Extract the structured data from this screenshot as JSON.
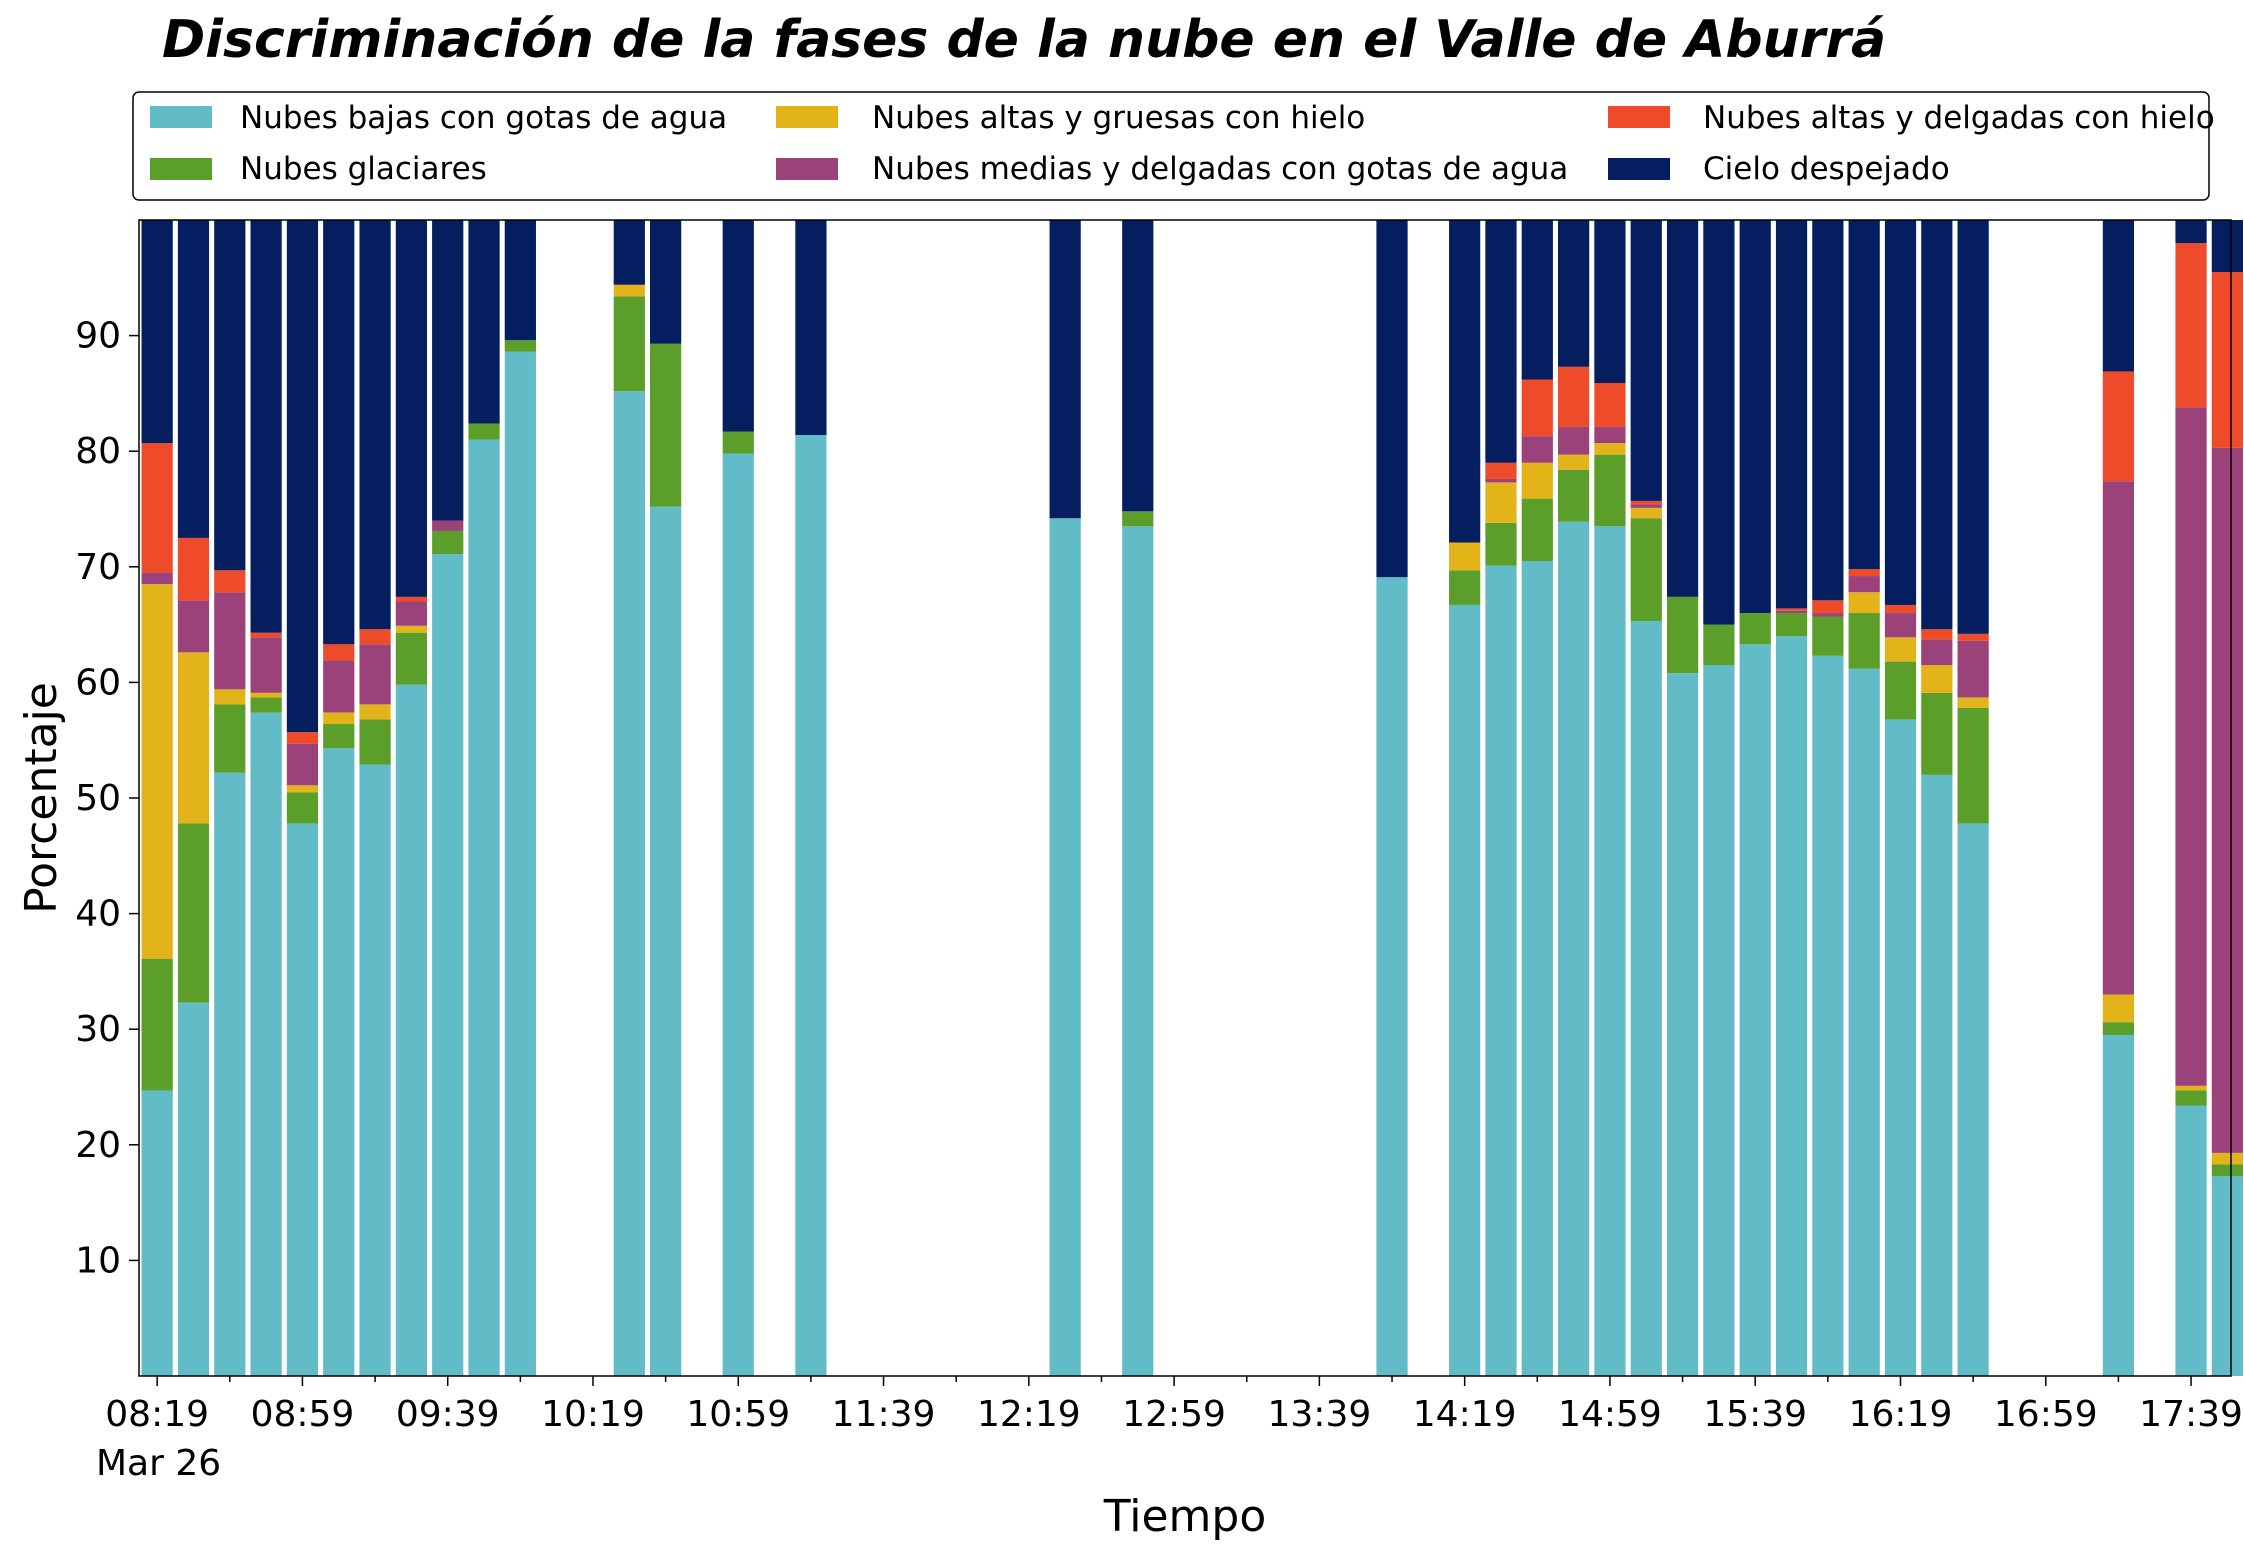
{
  "chart_data": {
    "type": "bar",
    "stacked": true,
    "title": "Discriminación de la fases de la nube en el Valle de Aburrá",
    "xlabel": "Tiempo",
    "ylabel": "Porcentaje",
    "ylim": [
      0,
      100
    ],
    "yticks": [
      10,
      20,
      30,
      40,
      50,
      60,
      70,
      80,
      90
    ],
    "xlim": [
      "08:14",
      "17:50"
    ],
    "xtick_labels": [
      "08:19",
      "08:59",
      "09:39",
      "10:19",
      "10:59",
      "11:39",
      "12:19",
      "12:59",
      "13:39",
      "14:19",
      "14:59",
      "15:39",
      "16:19",
      "16:59",
      "17:39"
    ],
    "xtick_sublabel": "Mar 26",
    "bar_interval_minutes": 10,
    "legend_position": "top, 3 columns",
    "series": [
      {
        "name": "Nubes bajas con gotas de agua",
        "color": "#62bcc8"
      },
      {
        "name": "Nubes altas y gruesas con hielo",
        "color": "#e3b419"
      },
      {
        "name": "Nubes altas y delgadas con hielo",
        "color": "#ee4b2b"
      },
      {
        "name": "Nubes glaciares",
        "color": "#5b9e2a"
      },
      {
        "name": "Nubes medias y delgadas con gotas de agua",
        "color": "#9c427a"
      },
      {
        "name": "Cielo despejado",
        "color": "#041e5f"
      }
    ],
    "stack_order": [
      "Nubes bajas con gotas de agua",
      "Nubes glaciares",
      "Nubes altas y gruesas con hielo",
      "Nubes medias y delgadas con gotas de agua",
      "Nubes altas y delgadas con hielo",
      "Cielo despejado"
    ],
    "bars": [
      {
        "time": "08:19",
        "bajas": 24.7,
        "glaciares": 11.4,
        "gruesas_hielo": 32.4,
        "medias": 1.0,
        "delgadas_hielo": 11.2,
        "despejado": 19.3
      },
      {
        "time": "08:29",
        "bajas": 32.3,
        "glaciares": 15.5,
        "gruesas_hielo": 14.8,
        "medias": 4.5,
        "delgadas_hielo": 5.4,
        "despejado": 27.5
      },
      {
        "time": "08:39",
        "bajas": 52.2,
        "glaciares": 5.9,
        "gruesas_hielo": 1.3,
        "medias": 8.4,
        "delgadas_hielo": 1.9,
        "despejado": 30.3
      },
      {
        "time": "08:49",
        "bajas": 57.4,
        "glaciares": 1.3,
        "gruesas_hielo": 0.4,
        "medias": 4.8,
        "delgadas_hielo": 0.4,
        "despejado": 35.7
      },
      {
        "time": "08:59",
        "bajas": 47.8,
        "glaciares": 2.7,
        "gruesas_hielo": 0.6,
        "medias": 3.6,
        "delgadas_hielo": 1.0,
        "despejado": 44.3
      },
      {
        "time": "09:09",
        "bajas": 54.3,
        "glaciares": 2.1,
        "gruesas_hielo": 1.0,
        "medias": 4.5,
        "delgadas_hielo": 1.4,
        "despejado": 36.7
      },
      {
        "time": "09:19",
        "bajas": 52.9,
        "glaciares": 3.9,
        "gruesas_hielo": 1.3,
        "medias": 5.2,
        "delgadas_hielo": 1.3,
        "despejado": 35.4
      },
      {
        "time": "09:29",
        "bajas": 59.8,
        "glaciares": 4.5,
        "gruesas_hielo": 0.6,
        "medias": 2.1,
        "delgadas_hielo": 0.4,
        "despejado": 32.6
      },
      {
        "time": "09:39",
        "bajas": 71.1,
        "glaciares": 2.0,
        "gruesas_hielo": 0.0,
        "medias": 0.9,
        "delgadas_hielo": 0.0,
        "despejado": 26.0
      },
      {
        "time": "09:49",
        "bajas": 81.0,
        "glaciares": 1.4,
        "gruesas_hielo": 0.0,
        "medias": 0.0,
        "delgadas_hielo": 0.0,
        "despejado": 17.6
      },
      {
        "time": "09:59",
        "bajas": 88.6,
        "glaciares": 1.0,
        "gruesas_hielo": 0.0,
        "medias": 0.0,
        "delgadas_hielo": 0.0,
        "despejado": 10.4
      },
      {
        "time": "10:29",
        "bajas": 85.2,
        "glaciares": 8.2,
        "gruesas_hielo": 1.0,
        "medias": 0.0,
        "delgadas_hielo": 0.0,
        "despejado": 5.6
      },
      {
        "time": "10:39",
        "bajas": 75.2,
        "glaciares": 14.1,
        "gruesas_hielo": 0.0,
        "medias": 0.0,
        "delgadas_hielo": 0.0,
        "despejado": 10.7
      },
      {
        "time": "10:59",
        "bajas": 79.8,
        "glaciares": 1.9,
        "gruesas_hielo": 0.0,
        "medias": 0.0,
        "delgadas_hielo": 0.0,
        "despejado": 18.3
      },
      {
        "time": "11:19",
        "bajas": 81.4,
        "glaciares": 0.0,
        "gruesas_hielo": 0.0,
        "medias": 0.0,
        "delgadas_hielo": 0.0,
        "despejado": 18.6
      },
      {
        "time": "12:29",
        "bajas": 74.2,
        "glaciares": 0.0,
        "gruesas_hielo": 0.0,
        "medias": 0.0,
        "delgadas_hielo": 0.0,
        "despejado": 25.8
      },
      {
        "time": "12:49",
        "bajas": 73.5,
        "glaciares": 1.3,
        "gruesas_hielo": 0.0,
        "medias": 0.0,
        "delgadas_hielo": 0.0,
        "despejado": 25.2
      },
      {
        "time": "13:59",
        "bajas": 69.1,
        "glaciares": 0.0,
        "gruesas_hielo": 0.0,
        "medias": 0.0,
        "delgadas_hielo": 0.0,
        "despejado": 30.9
      },
      {
        "time": "14:19",
        "bajas": 66.7,
        "glaciares": 3.0,
        "gruesas_hielo": 2.4,
        "medias": 0.0,
        "delgadas_hielo": 0.0,
        "despejado": 27.9
      },
      {
        "time": "14:29",
        "bajas": 70.1,
        "glaciares": 3.7,
        "gruesas_hielo": 3.5,
        "medias": 0.3,
        "delgadas_hielo": 1.4,
        "despejado": 21.0
      },
      {
        "time": "14:39",
        "bajas": 70.5,
        "glaciares": 5.4,
        "gruesas_hielo": 3.1,
        "medias": 2.3,
        "delgadas_hielo": 4.9,
        "despejado": 13.8
      },
      {
        "time": "14:49",
        "bajas": 73.9,
        "glaciares": 4.5,
        "gruesas_hielo": 1.3,
        "medias": 2.4,
        "delgadas_hielo": 5.2,
        "despejado": 12.7
      },
      {
        "time": "14:59",
        "bajas": 73.5,
        "glaciares": 6.2,
        "gruesas_hielo": 1.0,
        "medias": 1.4,
        "delgadas_hielo": 3.8,
        "despejado": 14.1
      },
      {
        "time": "15:09",
        "bajas": 65.3,
        "glaciares": 8.9,
        "gruesas_hielo": 0.9,
        "medias": 0.3,
        "delgadas_hielo": 0.3,
        "despejado": 24.3
      },
      {
        "time": "15:19",
        "bajas": 60.8,
        "glaciares": 6.6,
        "gruesas_hielo": 0.0,
        "medias": 0.0,
        "delgadas_hielo": 0.0,
        "despejado": 32.6
      },
      {
        "time": "15:29",
        "bajas": 61.5,
        "glaciares": 3.5,
        "gruesas_hielo": 0.0,
        "medias": 0.0,
        "delgadas_hielo": 0.0,
        "despejado": 35.0
      },
      {
        "time": "15:39",
        "bajas": 63.3,
        "glaciares": 2.7,
        "gruesas_hielo": 0.0,
        "medias": 0.0,
        "delgadas_hielo": 0.0,
        "despejado": 34.0
      },
      {
        "time": "15:49",
        "bajas": 64.0,
        "glaciares": 2.0,
        "gruesas_hielo": 0.0,
        "medias": 0.2,
        "delgadas_hielo": 0.2,
        "despejado": 33.6
      },
      {
        "time": "15:59",
        "bajas": 62.3,
        "glaciares": 3.4,
        "gruesas_hielo": 0.0,
        "medias": 0.3,
        "delgadas_hielo": 1.1,
        "despejado": 32.9
      },
      {
        "time": "16:09",
        "bajas": 61.2,
        "glaciares": 4.8,
        "gruesas_hielo": 1.8,
        "medias": 1.4,
        "delgadas_hielo": 0.6,
        "despejado": 30.2
      },
      {
        "time": "16:19",
        "bajas": 56.8,
        "glaciares": 5.0,
        "gruesas_hielo": 2.1,
        "medias": 2.1,
        "delgadas_hielo": 0.7,
        "despejado": 33.3
      },
      {
        "time": "16:29",
        "bajas": 52.0,
        "glaciares": 7.1,
        "gruesas_hielo": 2.4,
        "medias": 2.2,
        "delgadas_hielo": 0.9,
        "despejado": 35.4
      },
      {
        "time": "16:39",
        "bajas": 47.8,
        "glaciares": 10.0,
        "gruesas_hielo": 0.9,
        "medias": 4.9,
        "delgadas_hielo": 0.6,
        "despejado": 35.8
      },
      {
        "time": "17:19",
        "bajas": 29.5,
        "glaciares": 1.1,
        "gruesas_hielo": 2.4,
        "medias": 44.4,
        "delgadas_hielo": 9.5,
        "despejado": 13.1
      },
      {
        "time": "17:39",
        "bajas": 23.4,
        "glaciares": 1.3,
        "gruesas_hielo": 0.4,
        "medias": 58.7,
        "delgadas_hielo": 14.2,
        "despejado": 2.0
      },
      {
        "time": "17:49",
        "bajas": 17.3,
        "glaciares": 1.0,
        "gruesas_hielo": 1.0,
        "medias": 61.0,
        "delgadas_hielo": 15.2,
        "despejado": 4.5
      }
    ]
  }
}
